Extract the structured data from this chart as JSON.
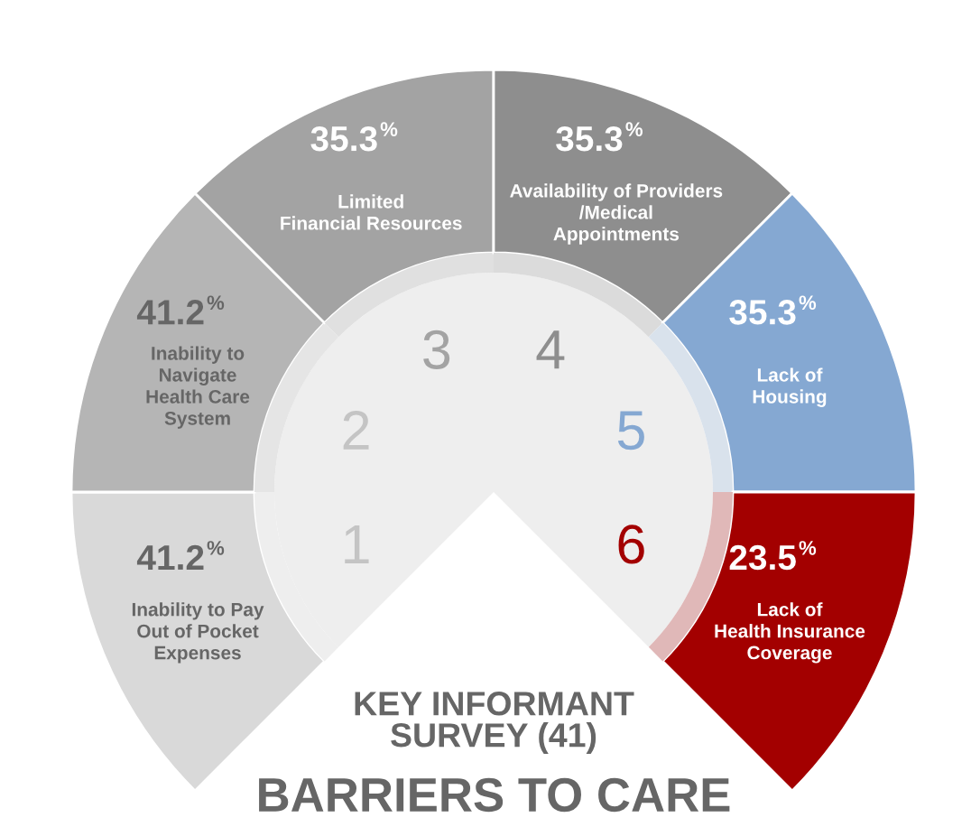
{
  "chart_data": {
    "type": "other",
    "title": "BARRIERS TO CARE",
    "subtitle": "KEY INFORMANT\nSURVEY (41)",
    "categories": [
      "Inability to Pay\nOut of Pocket\nExpenses",
      "Inability to\nNavigate\nHealth Care\nSystem",
      "Limited\nFinancial Resources",
      "Availability of Providers\n/Medical\nAppointments",
      "Lack of\nHousing",
      "Lack of\nHealth Insurance\nCoverage"
    ],
    "values": [
      41.2,
      41.2,
      35.3,
      35.3,
      35.3,
      23.5
    ],
    "value_labels": [
      "41.2%",
      "41.2%",
      "35.3%",
      "35.3%",
      "35.3%",
      "23.5%"
    ],
    "colors": [
      "#d9d9d9",
      "#b5b5b5",
      "#a3a3a3",
      "#8e8e8e",
      "#85a8d2",
      "#a30000"
    ],
    "annotations": [
      "1",
      "2",
      "3",
      "4",
      "5",
      "6"
    ]
  }
}
